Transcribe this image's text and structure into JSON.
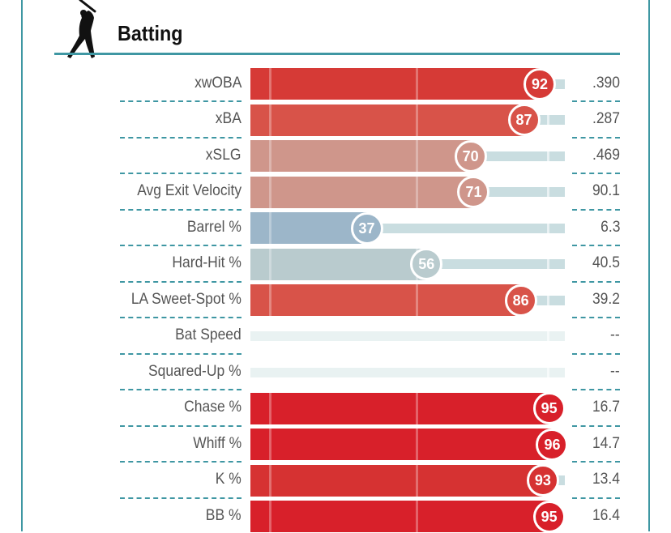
{
  "header": {
    "title": "Batting",
    "icon": "batter-silhouette-icon"
  },
  "colors": {
    "border": "#3f97a3",
    "track": "#c9dde0",
    "track_empty": "#e9f2f2"
  },
  "chart_data": {
    "type": "bar",
    "title": "Batting",
    "xlim": [
      0,
      100
    ],
    "categories": [
      "xwOBA",
      "xBA",
      "xSLG",
      "Avg Exit Velocity",
      "Barrel %",
      "Hard-Hit %",
      "LA Sweet-Spot %",
      "Bat Speed",
      "Squared-Up %",
      "Chase %",
      "Whiff %",
      "K %",
      "BB %"
    ],
    "rows": [
      {
        "label": "xwOBA",
        "percentile": 92,
        "value": ".390",
        "color": "#d63a36"
      },
      {
        "label": "xBA",
        "percentile": 87,
        "value": ".287",
        "color": "#d85349"
      },
      {
        "label": "xSLG",
        "percentile": 70,
        "value": ".469",
        "color": "#cf968b"
      },
      {
        "label": "Avg Exit Velocity",
        "percentile": 71,
        "value": "90.1",
        "color": "#cf968b"
      },
      {
        "label": "Barrel %",
        "percentile": 37,
        "value": "6.3",
        "color": "#9cb6c9"
      },
      {
        "label": "Hard-Hit %",
        "percentile": 56,
        "value": "40.5",
        "color": "#b9cbce"
      },
      {
        "label": "LA Sweet-Spot %",
        "percentile": 86,
        "value": "39.2",
        "color": "#d85349"
      },
      {
        "label": "Bat Speed",
        "percentile": null,
        "value": "--",
        "color": ""
      },
      {
        "label": "Squared-Up %",
        "percentile": null,
        "value": "--",
        "color": ""
      },
      {
        "label": "Chase %",
        "percentile": 95,
        "value": "16.7",
        "color": "#d8202a"
      },
      {
        "label": "Whiff %",
        "percentile": 96,
        "value": "14.7",
        "color": "#d8202a"
      },
      {
        "label": "K %",
        "percentile": 93,
        "value": "13.4",
        "color": "#d63232"
      },
      {
        "label": "BB %",
        "percentile": 95,
        "value": "16.4",
        "color": "#d8202a"
      }
    ]
  }
}
